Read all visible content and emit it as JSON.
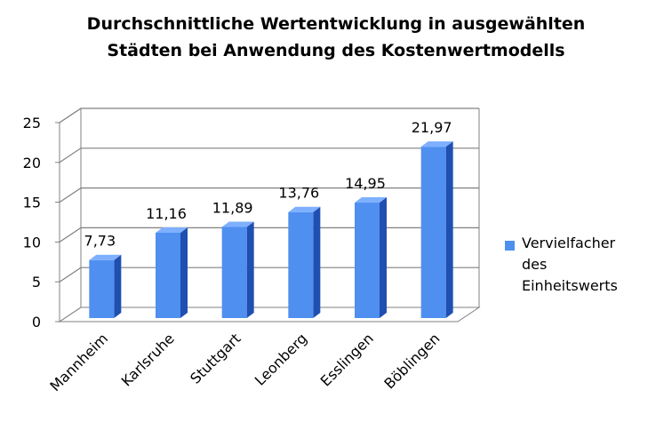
{
  "chart_data": {
    "type": "bar",
    "title_lines": [
      "Durchschnittliche Wertentwicklung in ausgewählten",
      "Städten bei Anwendung des Kostenwertmodells"
    ],
    "categories": [
      "Mannheim",
      "Karlsruhe",
      "Stuttgart",
      "Leonberg",
      "Esslingen",
      "Böblingen"
    ],
    "series": [
      {
        "name": "Vervielfacher des Einheitswerts",
        "values": [
          7.73,
          11.16,
          11.89,
          13.76,
          14.95,
          21.97
        ],
        "labels": [
          "7,73",
          "11,16",
          "11,89",
          "13,76",
          "14,95",
          "21,97"
        ]
      }
    ],
    "yticks": [
      "0",
      "5",
      "10",
      "15",
      "20",
      "25"
    ],
    "ylim": [
      0,
      25
    ],
    "grid": true,
    "legend_position": "right",
    "style": "3d-column",
    "colors": {
      "bar_front": "#4f8ff0",
      "bar_side": "#1f4fb0",
      "bar_top": "#7fb0ff",
      "grid": "#808080"
    }
  }
}
